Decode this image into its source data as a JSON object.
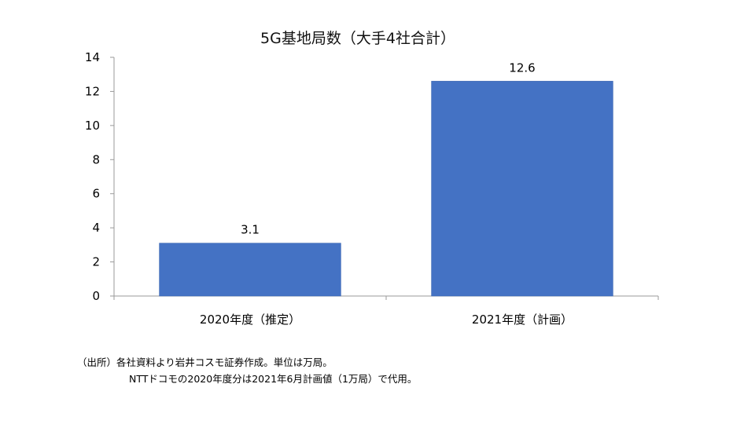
{
  "chart_data": {
    "type": "bar",
    "title": "5G基地局数（大手4社合計）",
    "categories": [
      "2020年度（推定）",
      "2021年度（計画）"
    ],
    "values": [
      3.1,
      12.6
    ],
    "data_labels": [
      "3.1",
      "12.6"
    ],
    "xlabel": "",
    "ylabel": "",
    "ylim": [
      0,
      14
    ],
    "yticks": [
      0,
      2,
      4,
      6,
      8,
      10,
      12,
      14
    ],
    "grid": false,
    "legend": "none"
  },
  "colors": {
    "bar": "#4472C4",
    "axis": "#9a9a9a",
    "text": "#000000"
  },
  "notes": {
    "line1": "（出所）各社資料より岩井コスモ証券作成。単位は万局。",
    "line2": "NTTドコモの2020年度分は2021年6月計画値（1万局）で代用。"
  }
}
